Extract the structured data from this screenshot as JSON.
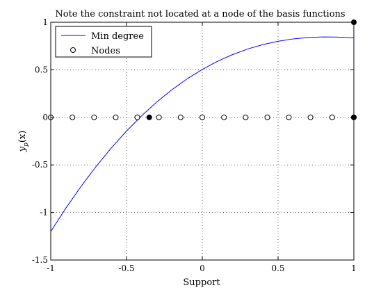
{
  "chart_data": {
    "type": "line",
    "title": "Note the constraint not located at a node of the basis functions",
    "xlabel": "Support",
    "ylabel": "y_p(x)",
    "ylabel_main": "y",
    "ylabel_sub": "p",
    "ylabel_suffix": "(x)",
    "xlim": [
      -1,
      1
    ],
    "ylim": [
      -1.5,
      1
    ],
    "xticks": [
      -1,
      -0.5,
      0,
      0.5,
      1
    ],
    "xtick_labels": [
      "-1",
      "-0.5",
      "0",
      "0.5",
      "1"
    ],
    "yticks": [
      -1.5,
      -1,
      -0.5,
      0,
      0.5,
      1
    ],
    "ytick_labels": [
      "-1.5",
      "-1",
      "-0.5",
      "0",
      "0.5",
      "1"
    ],
    "grid": true,
    "legend": {
      "placement": "top-left",
      "entries": [
        "Min degree",
        "Nodes"
      ]
    },
    "series": [
      {
        "name": "Min degree",
        "type": "line",
        "color": "#0000ff",
        "x": [
          -1,
          -0.9,
          -0.8,
          -0.7,
          -0.6,
          -0.5,
          -0.4,
          -0.3,
          -0.2,
          -0.1,
          0,
          0.1,
          0.2,
          0.3,
          0.4,
          0.5,
          0.6,
          0.7,
          0.8,
          0.9,
          1
        ],
        "y": [
          -1.2,
          -0.954,
          -0.726,
          -0.515,
          -0.321,
          -0.144,
          0.017,
          0.162,
          0.291,
          0.405,
          0.504,
          0.589,
          0.66,
          0.719,
          0.765,
          0.8,
          0.825,
          0.84,
          0.846,
          0.844,
          0.835
        ]
      },
      {
        "name": "Nodes",
        "type": "scatter",
        "marker": "open-circle",
        "color": "#000000",
        "x": [
          -1,
          -0.857,
          -0.714,
          -0.571,
          -0.429,
          -0.286,
          -0.143,
          0,
          0.143,
          0.286,
          0.429,
          0.571,
          0.714,
          0.857,
          1
        ],
        "y": [
          0,
          0,
          0,
          0,
          0,
          0,
          0,
          0,
          0,
          0,
          0,
          0,
          0,
          0,
          0
        ]
      },
      {
        "type": "scatter",
        "marker": "filled-circle",
        "color": "#000000",
        "x": [
          -0.35,
          1,
          1
        ],
        "y": [
          0,
          0,
          1
        ]
      }
    ]
  }
}
